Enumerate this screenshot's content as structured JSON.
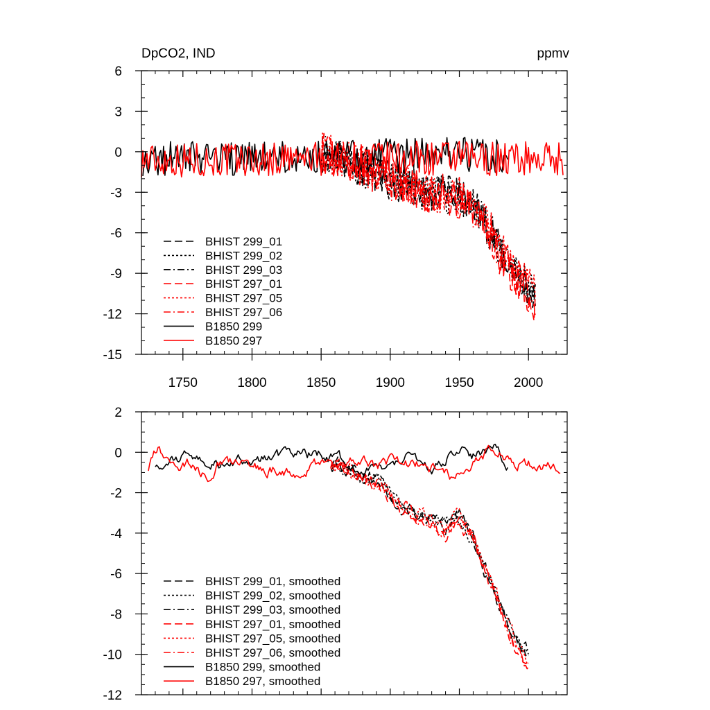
{
  "chart_data": [
    {
      "type": "line",
      "title_left": "DpCO2, IND",
      "title_right": "ppmv",
      "xlim": [
        1720,
        2028
      ],
      "ylim": [
        -15,
        6
      ],
      "xticks": [
        1750,
        1800,
        1850,
        1900,
        1950,
        2000
      ],
      "xtick_labels": [
        "1750",
        "1800",
        "1850",
        "1900",
        "1950",
        "2000"
      ],
      "yticks": [
        6,
        3,
        0,
        -3,
        -6,
        -9,
        -12,
        -15
      ],
      "ytick_labels": [
        "6",
        "3",
        "0",
        "-3",
        "-6",
        "-9",
        "-12",
        "-15"
      ],
      "legend_position": "lower-left",
      "series": [
        {
          "name": "BHIST 299_01",
          "color": "#000000",
          "style": "dashed",
          "x_start": 1850,
          "x_end": 2005,
          "amplitude": 1.4,
          "seed": 11,
          "trend": [
            [
              1850,
              0.0
            ],
            [
              1880,
              -1.2
            ],
            [
              1900,
              -2.0
            ],
            [
              1930,
              -3.0
            ],
            [
              1950,
              -3.4
            ],
            [
              1960,
              -4.0
            ],
            [
              1970,
              -5.5
            ],
            [
              1980,
              -7.5
            ],
            [
              1990,
              -9.0
            ],
            [
              2000,
              -10.2
            ],
            [
              2005,
              -11.0
            ]
          ]
        },
        {
          "name": "BHIST 299_02",
          "color": "#000000",
          "style": "dotted",
          "x_start": 1850,
          "x_end": 2005,
          "amplitude": 1.4,
          "seed": 23,
          "trend": [
            [
              1850,
              0.0
            ],
            [
              1880,
              -1.3
            ],
            [
              1900,
              -2.3
            ],
            [
              1930,
              -3.1
            ],
            [
              1950,
              -3.5
            ],
            [
              1960,
              -4.1
            ],
            [
              1970,
              -5.6
            ],
            [
              1980,
              -7.7
            ],
            [
              1990,
              -9.1
            ],
            [
              2000,
              -10.0
            ],
            [
              2005,
              -10.6
            ]
          ]
        },
        {
          "name": "BHIST 299_03",
          "color": "#000000",
          "style": "dashdot",
          "x_start": 1850,
          "x_end": 2005,
          "amplitude": 1.4,
          "seed": 37,
          "trend": [
            [
              1850,
              0.0
            ],
            [
              1880,
              -1.1
            ],
            [
              1900,
              -2.1
            ],
            [
              1930,
              -3.0
            ],
            [
              1950,
              -3.3
            ],
            [
              1960,
              -4.0
            ],
            [
              1970,
              -5.4
            ],
            [
              1980,
              -7.4
            ],
            [
              1990,
              -8.9
            ],
            [
              2000,
              -10.1
            ],
            [
              2005,
              -10.8
            ]
          ]
        },
        {
          "name": "BHIST 297_01",
          "color": "#ff0000",
          "style": "dashed",
          "x_start": 1850,
          "x_end": 2005,
          "amplitude": 1.5,
          "seed": 41,
          "trend": [
            [
              1850,
              0.0
            ],
            [
              1880,
              -1.2
            ],
            [
              1900,
              -2.0
            ],
            [
              1930,
              -3.2
            ],
            [
              1950,
              -3.5
            ],
            [
              1960,
              -4.2
            ],
            [
              1970,
              -5.7
            ],
            [
              1980,
              -7.8
            ],
            [
              1990,
              -9.3
            ],
            [
              2000,
              -10.4
            ],
            [
              2005,
              -11.5
            ]
          ]
        },
        {
          "name": "BHIST 297_05",
          "color": "#ff0000",
          "style": "dotted",
          "x_start": 1850,
          "x_end": 2005,
          "amplitude": 1.5,
          "seed": 53,
          "trend": [
            [
              1850,
              0.0
            ],
            [
              1880,
              -1.0
            ],
            [
              1900,
              -2.0
            ],
            [
              1930,
              -3.0
            ],
            [
              1950,
              -3.2
            ],
            [
              1960,
              -3.9
            ],
            [
              1970,
              -5.3
            ],
            [
              1980,
              -7.3
            ],
            [
              1990,
              -8.7
            ],
            [
              2000,
              -9.9
            ],
            [
              2005,
              -10.5
            ]
          ]
        },
        {
          "name": "BHIST 297_06",
          "color": "#ff0000",
          "style": "dashdot",
          "x_start": 1850,
          "x_end": 2005,
          "amplitude": 1.5,
          "seed": 67,
          "trend": [
            [
              1850,
              0.0
            ],
            [
              1880,
              -1.1
            ],
            [
              1900,
              -2.1
            ],
            [
              1930,
              -3.1
            ],
            [
              1950,
              -3.4
            ],
            [
              1960,
              -4.1
            ],
            [
              1970,
              -5.6
            ],
            [
              1980,
              -7.6
            ],
            [
              1990,
              -9.1
            ],
            [
              2000,
              -10.3
            ],
            [
              2005,
              -11.2
            ]
          ]
        },
        {
          "name": "B1850 299",
          "color": "#000000",
          "style": "solid",
          "x_start": 1721,
          "x_end": 1985,
          "amplitude": 1.3,
          "seed": 79,
          "trend": [
            [
              1721,
              -0.5
            ],
            [
              1800,
              -0.5
            ],
            [
              1900,
              -0.3
            ],
            [
              1985,
              -0.2
            ]
          ]
        },
        {
          "name": "B1850 297",
          "color": "#ff0000",
          "style": "solid",
          "x_start": 1720,
          "x_end": 2025,
          "amplitude": 1.3,
          "seed": 97,
          "trend": [
            [
              1720,
              -0.6
            ],
            [
              1800,
              -0.6
            ],
            [
              1900,
              -0.5
            ],
            [
              2025,
              -0.5
            ]
          ]
        }
      ]
    },
    {
      "type": "line",
      "xlim": [
        1720,
        2028
      ],
      "ylim": [
        -12,
        2
      ],
      "xticks": [
        1750,
        1800,
        1850,
        1900,
        1950,
        2000
      ],
      "yticks": [
        2,
        0,
        -2,
        -4,
        -6,
        -8,
        -10,
        -12
      ],
      "ytick_labels": [
        "2",
        "0",
        "-2",
        "-4",
        "-6",
        "-8",
        "-10",
        "-12"
      ],
      "legend_position": "lower-left",
      "series": [
        {
          "name": "BHIST 299_01, smoothed",
          "color": "#000000",
          "style": "dashed",
          "x_start": 1857,
          "x_end": 2000,
          "amplitude": 0.25,
          "seed": 111,
          "trend": [
            [
              1857,
              -0.5
            ],
            [
              1880,
              -1.2
            ],
            [
              1890,
              -1.3
            ],
            [
              1900,
              -2.0
            ],
            [
              1910,
              -2.6
            ],
            [
              1920,
              -3.1
            ],
            [
              1930,
              -3.2
            ],
            [
              1940,
              -3.7
            ],
            [
              1950,
              -3.3
            ],
            [
              1960,
              -4.4
            ],
            [
              1970,
              -6.0
            ],
            [
              1980,
              -7.8
            ],
            [
              1990,
              -9.2
            ],
            [
              2000,
              -10.0
            ]
          ]
        },
        {
          "name": "BHIST 299_02, smoothed",
          "color": "#000000",
          "style": "dotted",
          "x_start": 1857,
          "x_end": 2000,
          "amplitude": 0.25,
          "seed": 123,
          "trend": [
            [
              1857,
              -0.5
            ],
            [
              1880,
              -1.3
            ],
            [
              1890,
              -1.2
            ],
            [
              1900,
              -2.2
            ],
            [
              1910,
              -2.8
            ],
            [
              1920,
              -3.0
            ],
            [
              1930,
              -3.0
            ],
            [
              1940,
              -3.6
            ],
            [
              1950,
              -3.4
            ],
            [
              1960,
              -4.2
            ],
            [
              1970,
              -5.8
            ],
            [
              1980,
              -7.6
            ],
            [
              1990,
              -9.0
            ],
            [
              2000,
              -9.7
            ]
          ]
        },
        {
          "name": "BHIST 299_03, smoothed",
          "color": "#000000",
          "style": "dashdot",
          "x_start": 1857,
          "x_end": 2000,
          "amplitude": 0.25,
          "seed": 137,
          "trend": [
            [
              1857,
              -0.5
            ],
            [
              1880,
              -1.1
            ],
            [
              1890,
              -1.4
            ],
            [
              1900,
              -2.1
            ],
            [
              1910,
              -2.7
            ],
            [
              1920,
              -3.2
            ],
            [
              1930,
              -3.3
            ],
            [
              1940,
              -3.8
            ],
            [
              1950,
              -3.4
            ],
            [
              1960,
              -4.3
            ],
            [
              1970,
              -5.9
            ],
            [
              1980,
              -7.7
            ],
            [
              1990,
              -9.1
            ],
            [
              2000,
              -9.9
            ]
          ]
        },
        {
          "name": "BHIST 297_01, smoothed",
          "color": "#ff0000",
          "style": "dashed",
          "x_start": 1857,
          "x_end": 2000,
          "amplitude": 0.25,
          "seed": 141,
          "trend": [
            [
              1857,
              -0.5
            ],
            [
              1880,
              -1.2
            ],
            [
              1890,
              -1.5
            ],
            [
              1900,
              -2.3
            ],
            [
              1910,
              -3.0
            ],
            [
              1920,
              -3.4
            ],
            [
              1930,
              -3.5
            ],
            [
              1940,
              -4.2
            ],
            [
              1950,
              -3.5
            ],
            [
              1960,
              -4.4
            ],
            [
              1970,
              -6.1
            ],
            [
              1980,
              -8.0
            ],
            [
              1990,
              -9.6
            ],
            [
              2000,
              -10.8
            ]
          ]
        },
        {
          "name": "BHIST 297_05, smoothed",
          "color": "#ff0000",
          "style": "dotted",
          "x_start": 1857,
          "x_end": 2000,
          "amplitude": 0.25,
          "seed": 153,
          "trend": [
            [
              1857,
              -0.5
            ],
            [
              1880,
              -1.0
            ],
            [
              1890,
              -1.4
            ],
            [
              1900,
              -2.1
            ],
            [
              1910,
              -2.7
            ],
            [
              1920,
              -3.1
            ],
            [
              1930,
              -3.3
            ],
            [
              1940,
              -3.9
            ],
            [
              1950,
              -3.2
            ],
            [
              1960,
              -4.2
            ],
            [
              1970,
              -5.8
            ],
            [
              1980,
              -7.6
            ],
            [
              1990,
              -9.1
            ],
            [
              2000,
              -10.2
            ]
          ]
        },
        {
          "name": "BHIST 297_06, smoothed",
          "color": "#ff0000",
          "style": "dashdot",
          "x_start": 1857,
          "x_end": 2000,
          "amplitude": 0.25,
          "seed": 167,
          "trend": [
            [
              1857,
              -0.5
            ],
            [
              1880,
              -1.1
            ],
            [
              1890,
              -1.5
            ],
            [
              1900,
              -2.2
            ],
            [
              1910,
              -2.9
            ],
            [
              1920,
              -3.3
            ],
            [
              1930,
              -3.4
            ],
            [
              1940,
              -4.1
            ],
            [
              1950,
              -3.4
            ],
            [
              1960,
              -4.3
            ],
            [
              1970,
              -6.0
            ],
            [
              1980,
              -7.9
            ],
            [
              1990,
              -9.4
            ],
            [
              2000,
              -10.6
            ]
          ]
        },
        {
          "name": "B1850 299, smoothed",
          "color": "#000000",
          "style": "solid",
          "x_start": 1730,
          "x_end": 1985,
          "amplitude": 0.22,
          "seed": 179,
          "trend": [
            [
              1730,
              -0.5
            ],
            [
              1748,
              -0.4
            ],
            [
              1758,
              -0.1
            ],
            [
              1765,
              -0.8
            ],
            [
              1780,
              -0.4
            ],
            [
              1800,
              -0.5
            ],
            [
              1830,
              -0.1
            ],
            [
              1850,
              -0.1
            ],
            [
              1870,
              -0.6
            ],
            [
              1895,
              -0.6
            ],
            [
              1910,
              -0.2
            ],
            [
              1925,
              -0.5
            ],
            [
              1930,
              -1.0
            ],
            [
              1945,
              0.0
            ],
            [
              1960,
              -0.2
            ],
            [
              1975,
              0.2
            ],
            [
              1985,
              -0.6
            ]
          ]
        },
        {
          "name": "B1850 297, smoothed",
          "color": "#ff0000",
          "style": "solid",
          "x_start": 1725,
          "x_end": 2023,
          "amplitude": 0.22,
          "seed": 197,
          "trend": [
            [
              1725,
              -0.7
            ],
            [
              1732,
              0.2
            ],
            [
              1738,
              -0.4
            ],
            [
              1760,
              -0.6
            ],
            [
              1768,
              -1.4
            ],
            [
              1778,
              -0.6
            ],
            [
              1800,
              -0.6
            ],
            [
              1830,
              -1.0
            ],
            [
              1850,
              -0.6
            ],
            [
              1870,
              -0.4
            ],
            [
              1885,
              -0.7
            ],
            [
              1900,
              -0.6
            ],
            [
              1920,
              -0.5
            ],
            [
              1930,
              -0.8
            ],
            [
              1945,
              -1.3
            ],
            [
              1960,
              -0.6
            ],
            [
              1975,
              0.2
            ],
            [
              1990,
              -0.4
            ],
            [
              2010,
              -0.7
            ],
            [
              2023,
              -0.5
            ]
          ]
        }
      ]
    }
  ]
}
